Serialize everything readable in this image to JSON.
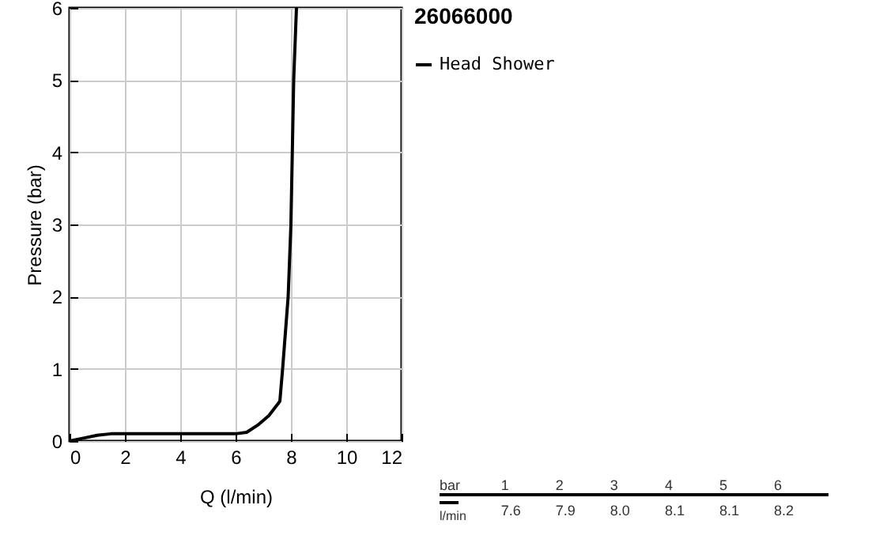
{
  "chart_data": {
    "type": "line",
    "title": "26066000",
    "xlabel": "Q (l/min)",
    "ylabel": "Pressure (bar)",
    "x": [
      0,
      0.5,
      1,
      1.5,
      3,
      6,
      6.4,
      6.8,
      7.2,
      7.6,
      7.7,
      7.8,
      7.9,
      8.0,
      8.05,
      8.1,
      8.2
    ],
    "series": [
      {
        "name": "Head Shower",
        "color": "#000000",
        "values": [
          0,
          0.04,
          0.08,
          0.1,
          0.1,
          0.1,
          0.12,
          0.22,
          0.35,
          0.55,
          1,
          1.5,
          2,
          3,
          4,
          5,
          6
        ]
      }
    ],
    "xlim": [
      0,
      12
    ],
    "xticks": [
      0,
      2,
      4,
      6,
      8,
      10,
      12
    ],
    "ylim": [
      0,
      6
    ],
    "yticks": [
      0,
      1,
      2,
      3,
      4,
      5,
      6
    ],
    "grid": true,
    "legend": "top right",
    "marker": "none",
    "line_style": "solid",
    "annotations": [
      "bar",
      "1",
      "2",
      "3",
      "4",
      "5",
      "6",
      "l/min",
      "7.6",
      "7.9",
      "8.0",
      "8.1",
      "8.1",
      "8.2"
    ]
  }
}
